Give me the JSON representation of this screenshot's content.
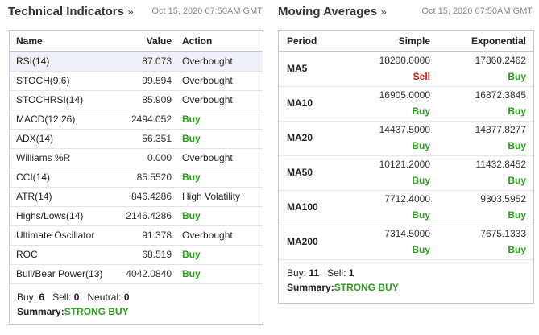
{
  "technical": {
    "title": "Technical Indicators",
    "chevron": "»",
    "timestamp": "Oct 15, 2020 07:50AM GMT",
    "headers": {
      "name": "Name",
      "value": "Value",
      "action": "Action"
    },
    "rows": [
      {
        "name": "RSI(14)",
        "value": "87.073",
        "action": "Overbought",
        "action_type": "neutral"
      },
      {
        "name": "STOCH(9,6)",
        "value": "99.594",
        "action": "Overbought",
        "action_type": "neutral"
      },
      {
        "name": "STOCHRSI(14)",
        "value": "85.909",
        "action": "Overbought",
        "action_type": "neutral"
      },
      {
        "name": "MACD(12,26)",
        "value": "2494.052",
        "action": "Buy",
        "action_type": "buy"
      },
      {
        "name": "ADX(14)",
        "value": "56.351",
        "action": "Buy",
        "action_type": "buy"
      },
      {
        "name": "Williams %R",
        "value": "0.000",
        "action": "Overbought",
        "action_type": "neutral"
      },
      {
        "name": "CCI(14)",
        "value": "85.5520",
        "action": "Buy",
        "action_type": "buy"
      },
      {
        "name": "ATR(14)",
        "value": "846.4286",
        "action": "High Volatility",
        "action_type": "neutral"
      },
      {
        "name": "Highs/Lows(14)",
        "value": "2146.4286",
        "action": "Buy",
        "action_type": "buy"
      },
      {
        "name": "Ultimate Oscillator",
        "value": "91.378",
        "action": "Overbought",
        "action_type": "neutral"
      },
      {
        "name": "ROC",
        "value": "68.519",
        "action": "Buy",
        "action_type": "buy"
      },
      {
        "name": "Bull/Bear Power(13)",
        "value": "4042.0840",
        "action": "Buy",
        "action_type": "buy"
      }
    ],
    "counts": {
      "buy_label": "Buy:",
      "buy_value": "6",
      "sell_label": "Sell:",
      "sell_value": "0",
      "neutral_label": "Neutral:",
      "neutral_value": "0"
    },
    "summary_label": "Summary:",
    "summary_value": "STRONG BUY"
  },
  "moving_averages": {
    "title": "Moving Averages",
    "chevron": "»",
    "timestamp": "Oct 15, 2020 07:50AM GMT",
    "headers": {
      "period": "Period",
      "simple": "Simple",
      "exponential": "Exponential"
    },
    "rows": [
      {
        "period": "MA5",
        "simple_value": "18200.0000",
        "simple_action": "Sell",
        "simple_type": "sell",
        "exp_value": "17860.2462",
        "exp_action": "Buy",
        "exp_type": "buy"
      },
      {
        "period": "MA10",
        "simple_value": "16905.0000",
        "simple_action": "Buy",
        "simple_type": "buy",
        "exp_value": "16872.3845",
        "exp_action": "Buy",
        "exp_type": "buy"
      },
      {
        "period": "MA20",
        "simple_value": "14437.5000",
        "simple_action": "Buy",
        "simple_type": "buy",
        "exp_value": "14877.8277",
        "exp_action": "Buy",
        "exp_type": "buy"
      },
      {
        "period": "MA50",
        "simple_value": "10121.2000",
        "simple_action": "Buy",
        "simple_type": "buy",
        "exp_value": "11432.8452",
        "exp_action": "Buy",
        "exp_type": "buy"
      },
      {
        "period": "MA100",
        "simple_value": "7712.4000",
        "simple_action": "Buy",
        "simple_type": "buy",
        "exp_value": "9303.5952",
        "exp_action": "Buy",
        "exp_type": "buy"
      },
      {
        "period": "MA200",
        "simple_value": "7314.5000",
        "simple_action": "Buy",
        "simple_type": "buy",
        "exp_value": "7675.1333",
        "exp_action": "Buy",
        "exp_type": "buy"
      }
    ],
    "counts": {
      "buy_label": "Buy:",
      "buy_value": "11",
      "sell_label": "Sell:",
      "sell_value": "1"
    },
    "summary_label": "Summary:",
    "summary_value": "STRONG BUY"
  },
  "colors": {
    "buy": "#2a9d1a",
    "sell": "#dd1111",
    "border": "#c9c9c9",
    "highlight": "#eef2f8"
  }
}
